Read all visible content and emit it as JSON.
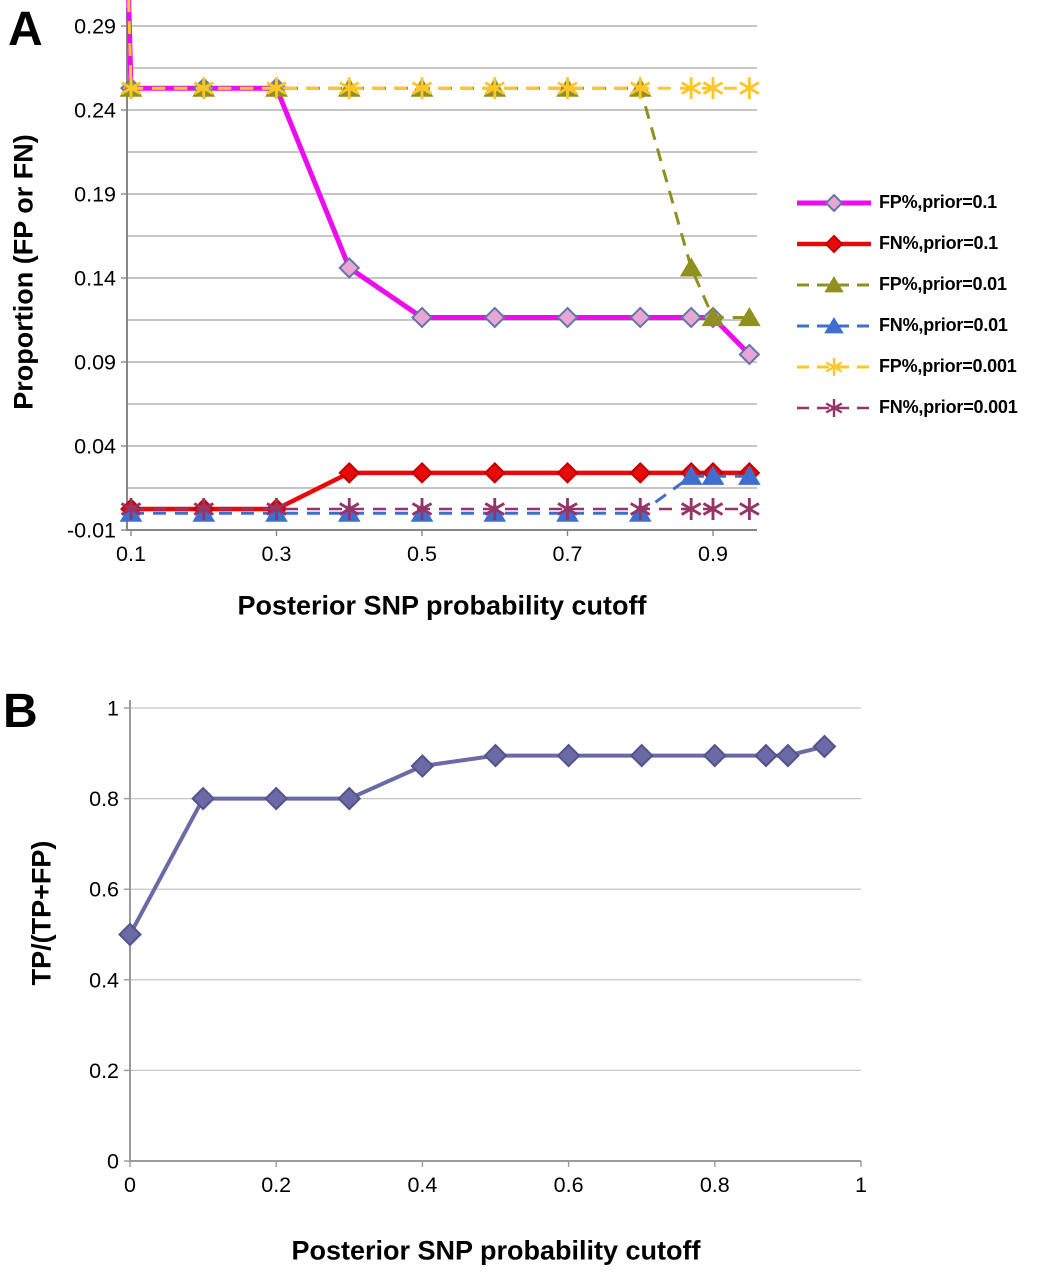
{
  "panels": {
    "a": {
      "letter": "A"
    },
    "b": {
      "letter": "B"
    }
  },
  "chart_data": [
    {
      "id": "panel_a",
      "type": "line",
      "title": "",
      "xlabel": "Posterior SNP probability cutoff",
      "ylabel": "Proportion (FP or FN)",
      "x": [
        0.1,
        0.2,
        0.3,
        0.4,
        0.5,
        0.6,
        0.7,
        0.8,
        0.87,
        0.9,
        0.95
      ],
      "xtick_values": [
        0.1,
        0.3,
        0.5,
        0.7,
        0.9
      ],
      "xtick_labels": [
        "0.1",
        "0.3",
        "0.5",
        "0.7",
        "0.9"
      ],
      "ytick_values": [
        -0.01,
        0.04,
        0.09,
        0.14,
        0.19,
        0.24,
        0.29
      ],
      "ytick_labels": [
        "-0.01",
        "0.04",
        "0.09",
        "0.14",
        "0.19",
        "0.24",
        "0.29"
      ],
      "ylim": [
        -0.01,
        0.3055
      ],
      "gridline_step": 0.025,
      "grid": true,
      "legend_position": "right",
      "series": [
        {
          "name": "FP%,prior=0.1",
          "color": "#ED0CED",
          "dash": "solid",
          "marker": "diamond",
          "marker_fill": "#E9A6D3",
          "marker_stroke": "#6674AC",
          "line_width": 5,
          "lead_in": {
            "x": 0.088,
            "y": 0.45
          },
          "values": [
            0.253,
            0.253,
            0.253,
            0.146,
            0.1165,
            0.1165,
            0.1165,
            0.1165,
            0.1165,
            0.1165,
            0.0945
          ]
        },
        {
          "name": "FN%,prior=0.1",
          "color": "#E80A0A",
          "dash": "solid",
          "marker": "diamond",
          "marker_fill": "#E80A0A",
          "marker_stroke": "#C00000",
          "line_width": 4.5,
          "values": [
            0.0025,
            0.0025,
            0.0025,
            0.024,
            0.024,
            0.024,
            0.024,
            0.024,
            0.024,
            0.024,
            0.024
          ]
        },
        {
          "name": "FP%,prior=0.01",
          "color": "#8F901F",
          "dash": "dashed",
          "marker": "triangle",
          "marker_fill": "#8F901F",
          "marker_stroke": "#8F901F",
          "line_width": 3,
          "values": [
            0.253,
            0.253,
            0.253,
            0.253,
            0.253,
            0.253,
            0.253,
            0.253,
            0.146,
            0.1165,
            0.1165
          ]
        },
        {
          "name": "FN%,prior=0.01",
          "color": "#3F6FCE",
          "dash": "dashed",
          "marker": "triangle",
          "marker_fill": "#3F6FCE",
          "marker_stroke": "#3F6FCE",
          "line_width": 3,
          "values": [
            0.0,
            0.0,
            0.0,
            0.0,
            0.0,
            0.0,
            0.0,
            0.0,
            0.022,
            0.022,
            0.022
          ]
        },
        {
          "name": "FP%,prior=0.001",
          "color": "#FFC62B",
          "dash": "dashed",
          "marker": "asterisk",
          "marker_fill": "#FFC62B",
          "marker_stroke": "#FFC62B",
          "line_width": 3,
          "lead_in": {
            "x": 0.088,
            "y": 0.45
          },
          "values": [
            0.253,
            0.253,
            0.253,
            0.253,
            0.253,
            0.253,
            0.253,
            0.253,
            0.253,
            0.253,
            0.253
          ]
        },
        {
          "name": "FN%,prior=0.001",
          "color": "#963467",
          "dash": "dashed",
          "marker": "asterisk",
          "marker_fill": "#963467",
          "marker_stroke": "#963467",
          "line_width": 2.5,
          "values": [
            0.0025,
            0.0025,
            0.0025,
            0.0025,
            0.0025,
            0.0025,
            0.0025,
            0.0025,
            0.0025,
            0.0025,
            0.0025
          ]
        }
      ]
    },
    {
      "id": "panel_b",
      "type": "line",
      "title": "",
      "xlabel": "Posterior SNP probability cutoff",
      "ylabel": "TP/(TP+FP)",
      "x": [
        0,
        0.1,
        0.2,
        0.3,
        0.4,
        0.5,
        0.6,
        0.7,
        0.8,
        0.87,
        0.9,
        0.95
      ],
      "xtick_values": [
        0,
        0.2,
        0.4,
        0.6,
        0.8,
        1
      ],
      "xtick_labels": [
        "0",
        "0.2",
        "0.4",
        "0.6",
        "0.8",
        "1"
      ],
      "ytick_values": [
        0,
        0.2,
        0.4,
        0.6,
        0.8,
        1
      ],
      "ytick_labels": [
        "0",
        "0.2",
        "0.4",
        "0.6",
        "0.8",
        "1"
      ],
      "xlim": [
        0,
        1
      ],
      "ylim": [
        0,
        1
      ],
      "grid": true,
      "legend_position": "none",
      "series": [
        {
          "name": "TP/(TP+FP)",
          "color": "#6A6AA6",
          "dash": "solid",
          "marker": "diamond",
          "marker_fill": "#6A6AA6",
          "marker_stroke": "#53538C",
          "line_width": 4,
          "values": [
            0.5,
            0.8,
            0.8,
            0.8,
            0.872,
            0.895,
            0.895,
            0.895,
            0.895,
            0.895,
            0.895,
            0.915
          ]
        }
      ]
    }
  ]
}
